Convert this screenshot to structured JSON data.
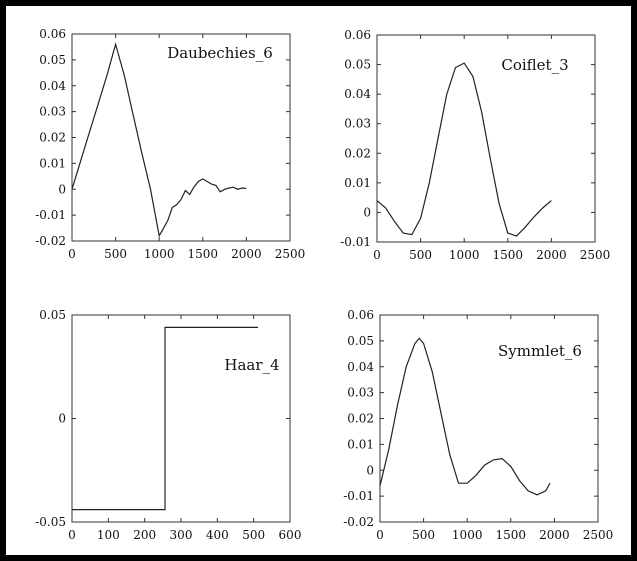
{
  "chart_data": [
    {
      "type": "line",
      "label": "Daubechies_6",
      "xlim": [
        0,
        2500
      ],
      "ylim": [
        -0.02,
        0.06
      ],
      "x_ticks": [
        0,
        500,
        1000,
        1500,
        2000,
        2500
      ],
      "y_ticks": [
        -0.02,
        -0.01,
        0,
        0.01,
        0.02,
        0.03,
        0.04,
        0.05,
        0.06
      ],
      "x_tick_labels": [
        "0",
        "500",
        "1000",
        "1500",
        "2000",
        "2500"
      ],
      "y_tick_labels": [
        "-0.02",
        "-0.01",
        "0",
        "0.01",
        "0.02",
        "0.03",
        "0.04",
        "0.05",
        "0.06"
      ],
      "x": [
        0,
        100,
        200,
        300,
        400,
        500,
        600,
        700,
        800,
        900,
        1000,
        1050,
        1100,
        1150,
        1200,
        1250,
        1300,
        1350,
        1400,
        1450,
        1500,
        1550,
        1600,
        1650,
        1700,
        1750,
        1800,
        1850,
        1900,
        1950,
        2000
      ],
      "y": [
        0,
        0.011,
        0.022,
        0.033,
        0.044,
        0.056,
        0.044,
        0.029,
        0.014,
        0,
        -0.018,
        -0.015,
        -0.012,
        -0.007,
        -0.006,
        -0.004,
        -0.0005,
        -0.002,
        0.001,
        0.003,
        0.004,
        0.003,
        0.002,
        0.0015,
        -0.001,
        0,
        0.0005,
        0.0008,
        0,
        0.0005,
        0.0003
      ],
      "line_color": "#222222"
    },
    {
      "type": "line",
      "label": "Coiflet_3",
      "xlim": [
        0,
        2500
      ],
      "ylim": [
        -0.01,
        0.06
      ],
      "x_ticks": [
        0,
        500,
        1000,
        1500,
        2000,
        2500
      ],
      "y_ticks": [
        -0.01,
        0,
        0.01,
        0.02,
        0.03,
        0.04,
        0.05,
        0.06
      ],
      "x_tick_labels": [
        "0",
        "500",
        "1000",
        "1500",
        "2000",
        "2500"
      ],
      "y_tick_labels": [
        "-0.01",
        "0",
        "0.01",
        "0.02",
        "0.03",
        "0.04",
        "0.05",
        "0.06"
      ],
      "x": [
        0,
        100,
        200,
        300,
        400,
        500,
        600,
        700,
        800,
        900,
        1000,
        1100,
        1200,
        1300,
        1400,
        1500,
        1600,
        1700,
        1800,
        1900,
        2000
      ],
      "y": [
        0.004,
        0.0015,
        -0.003,
        -0.007,
        -0.0075,
        -0.002,
        0.01,
        0.025,
        0.04,
        0.049,
        0.0505,
        0.046,
        0.034,
        0.018,
        0.003,
        -0.007,
        -0.008,
        -0.005,
        -0.0015,
        0.0015,
        0.004
      ],
      "line_color": "#222222"
    },
    {
      "type": "line",
      "label": "Haar_4",
      "xlim": [
        0,
        600
      ],
      "ylim": [
        -0.05,
        0.05
      ],
      "x_ticks": [
        0,
        100,
        200,
        300,
        400,
        500,
        600
      ],
      "y_ticks": [
        -0.05,
        0,
        0.05
      ],
      "x_tick_labels": [
        "0",
        "100",
        "200",
        "300",
        "400",
        "500",
        "600"
      ],
      "y_tick_labels": [
        "-0.05",
        "0",
        "0.05"
      ],
      "x": [
        0,
        256,
        256,
        512
      ],
      "y": [
        -0.044,
        -0.044,
        0.044,
        0.044
      ],
      "line_color": "#222222"
    },
    {
      "type": "line",
      "label": "Symmlet_6",
      "xlim": [
        0,
        2500
      ],
      "ylim": [
        -0.02,
        0.06
      ],
      "x_ticks": [
        0,
        500,
        1000,
        1500,
        2000,
        2500
      ],
      "y_ticks": [
        -0.02,
        -0.01,
        0,
        0.01,
        0.02,
        0.03,
        0.04,
        0.05,
        0.06
      ],
      "x_tick_labels": [
        "0",
        "500",
        "1000",
        "1500",
        "2000",
        "2500"
      ],
      "y_tick_labels": [
        "-0.02",
        "-0.01",
        "0",
        "0.01",
        "0.02",
        "0.03",
        "0.04",
        "0.05",
        "0.06"
      ],
      "x": [
        0,
        100,
        200,
        300,
        400,
        450,
        500,
        600,
        700,
        800,
        900,
        1000,
        1100,
        1200,
        1300,
        1400,
        1500,
        1600,
        1700,
        1800,
        1900,
        1950
      ],
      "y": [
        -0.006,
        0.008,
        0.025,
        0.04,
        0.049,
        0.051,
        0.049,
        0.038,
        0.022,
        0.006,
        -0.005,
        -0.005,
        -0.002,
        0.002,
        0.004,
        0.0045,
        0.0015,
        -0.004,
        -0.008,
        -0.0095,
        -0.008,
        -0.005
      ],
      "line_color": "#222222"
    }
  ]
}
